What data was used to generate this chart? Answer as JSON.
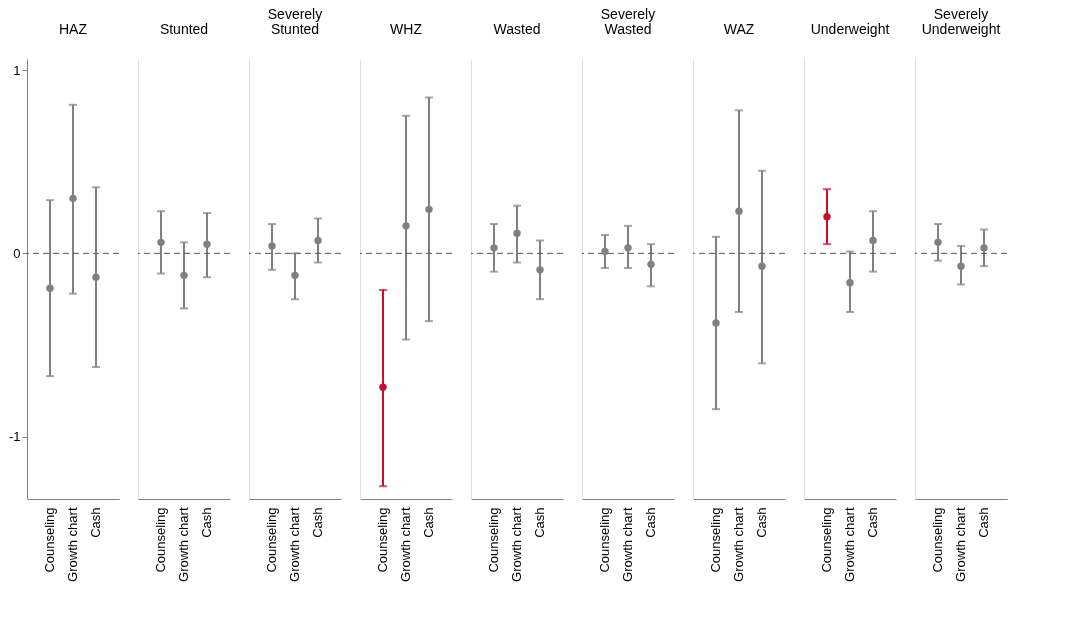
{
  "chart_data": [
    {
      "type": "scatter",
      "title": "HAZ",
      "categories": [
        "Counseling",
        "Growth chart",
        "Cash"
      ],
      "values": [
        -0.19,
        0.3,
        -0.13
      ],
      "errors": [
        [
          -0.67,
          0.29
        ],
        [
          -0.22,
          0.81
        ],
        [
          -0.62,
          0.36
        ]
      ],
      "colors": [
        "#808080",
        "#808080",
        "#808080"
      ],
      "ylim": [
        -1.34,
        1.06
      ],
      "yticks": [
        -1,
        0,
        1
      ],
      "ref_lines": [
        {
          "axis": "y",
          "value": 0,
          "line_style": "dashed"
        }
      ],
      "marker": "circle"
    },
    {
      "type": "scatter",
      "title": "Stunted",
      "categories": [
        "Counseling",
        "Growth chart",
        "Cash"
      ],
      "values": [
        0.06,
        -0.12,
        0.05
      ],
      "errors": [
        [
          -0.11,
          0.23
        ],
        [
          -0.3,
          0.06
        ],
        [
          -0.13,
          0.22
        ]
      ],
      "colors": [
        "#808080",
        "#808080",
        "#808080"
      ],
      "ylim": [
        -1.34,
        1.06
      ],
      "tick_labels": "x",
      "ref_lines": [
        {
          "axis": "y",
          "value": 0,
          "line_style": "dashed"
        }
      ],
      "marker": "circle"
    },
    {
      "type": "scatter",
      "title": "Severely Stunted",
      "categories": [
        "Counseling",
        "Growth chart",
        "Cash"
      ],
      "values": [
        0.04,
        -0.12,
        0.07
      ],
      "errors": [
        [
          -0.09,
          0.16
        ],
        [
          -0.25,
          0.0
        ],
        [
          -0.05,
          0.19
        ]
      ],
      "colors": [
        "#808080",
        "#808080",
        "#808080"
      ],
      "ylim": [
        -1.34,
        1.06
      ],
      "tick_labels": "x",
      "ref_lines": [
        {
          "axis": "y",
          "value": 0,
          "line_style": "dashed"
        }
      ],
      "marker": "circle"
    },
    {
      "type": "scatter",
      "title": "WHZ",
      "categories": [
        "Counseling",
        "Growth chart",
        "Cash"
      ],
      "values": [
        -0.73,
        0.15,
        0.24
      ],
      "errors": [
        [
          -1.27,
          -0.2
        ],
        [
          -0.47,
          0.75
        ],
        [
          -0.37,
          0.85
        ]
      ],
      "colors": [
        "#c8102e",
        "#808080",
        "#808080"
      ],
      "ylim": [
        -1.34,
        1.06
      ],
      "tick_labels": "x",
      "ref_lines": [
        {
          "axis": "y",
          "value": 0,
          "line_style": "dashed"
        }
      ],
      "marker": "circle"
    },
    {
      "type": "scatter",
      "title": "Wasted",
      "categories": [
        "Counseling",
        "Growth chart",
        "Cash"
      ],
      "values": [
        0.03,
        0.11,
        -0.09
      ],
      "errors": [
        [
          -0.1,
          0.16
        ],
        [
          -0.05,
          0.26
        ],
        [
          -0.25,
          0.07
        ]
      ],
      "colors": [
        "#808080",
        "#808080",
        "#808080"
      ],
      "ylim": [
        -1.34,
        1.06
      ],
      "tick_labels": "x",
      "ref_lines": [
        {
          "axis": "y",
          "value": 0,
          "line_style": "dashed"
        }
      ],
      "marker": "circle"
    },
    {
      "type": "scatter",
      "title": "Severely Wasted",
      "categories": [
        "Counseling",
        "Growth chart",
        "Cash"
      ],
      "values": [
        0.01,
        0.03,
        -0.06
      ],
      "errors": [
        [
          -0.08,
          0.1
        ],
        [
          -0.08,
          0.15
        ],
        [
          -0.18,
          0.05
        ]
      ],
      "colors": [
        "#808080",
        "#808080",
        "#808080"
      ],
      "ylim": [
        -1.34,
        1.06
      ],
      "tick_labels": "x",
      "ref_lines": [
        {
          "axis": "y",
          "value": 0,
          "line_style": "dashed"
        }
      ],
      "marker": "circle"
    },
    {
      "type": "scatter",
      "title": "WAZ",
      "categories": [
        "Counseling",
        "Growth chart",
        "Cash"
      ],
      "values": [
        -0.38,
        0.23,
        -0.07
      ],
      "errors": [
        [
          -0.85,
          0.09
        ],
        [
          -0.32,
          0.78
        ],
        [
          -0.6,
          0.45
        ]
      ],
      "colors": [
        "#808080",
        "#808080",
        "#808080"
      ],
      "ylim": [
        -1.34,
        1.06
      ],
      "tick_labels": "x",
      "ref_lines": [
        {
          "axis": "y",
          "value": 0,
          "line_style": "dashed"
        }
      ],
      "marker": "circle"
    },
    {
      "type": "scatter",
      "title": "Underweight",
      "categories": [
        "Counseling",
        "Growth chart",
        "Cash"
      ],
      "values": [
        0.2,
        -0.16,
        0.07
      ],
      "errors": [
        [
          0.05,
          0.35
        ],
        [
          -0.32,
          0.01
        ],
        [
          -0.1,
          0.23
        ]
      ],
      "colors": [
        "#c8102e",
        "#808080",
        "#808080"
      ],
      "ylim": [
        -1.34,
        1.06
      ],
      "tick_labels": "x",
      "ref_lines": [
        {
          "axis": "y",
          "value": 0,
          "line_style": "dashed"
        }
      ],
      "marker": "circle"
    },
    {
      "type": "scatter",
      "title": "Severely Underweight",
      "categories": [
        "Counseling",
        "Growth chart",
        "Cash"
      ],
      "values": [
        0.06,
        -0.07,
        0.03
      ],
      "errors": [
        [
          -0.04,
          0.16
        ],
        [
          -0.17,
          0.04
        ],
        [
          -0.07,
          0.13
        ]
      ],
      "colors": [
        "#808080",
        "#808080",
        "#808080"
      ],
      "ylim": [
        -1.34,
        1.06
      ],
      "tick_labels": "x",
      "ref_lines": [
        {
          "axis": "y",
          "value": 0,
          "line_style": "dashed"
        }
      ],
      "marker": "circle"
    }
  ]
}
